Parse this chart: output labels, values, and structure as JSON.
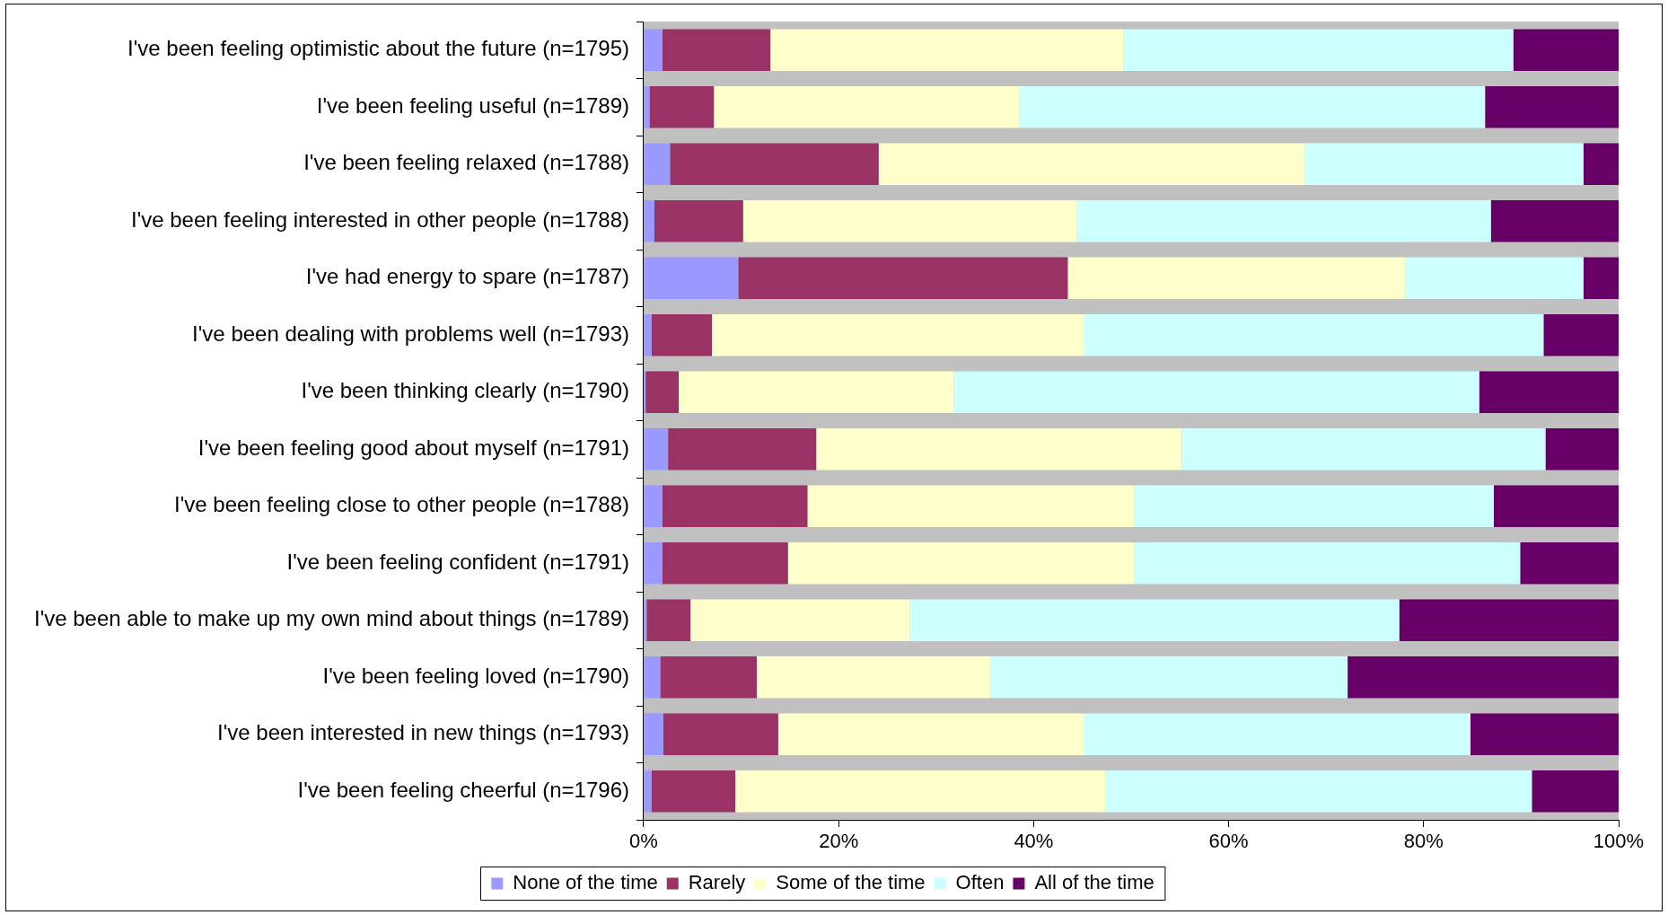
{
  "chart_data": {
    "type": "bar",
    "orientation": "horizontal",
    "stacked": true,
    "categories": [
      "I've been feeling optimistic about the future (n=1795)",
      "I've been feeling useful (n=1789)",
      "I've been feeling relaxed (n=1788)",
      "I've been feeling interested in other people (n=1788)",
      "I've had energy to spare (n=1787)",
      "I've been dealing with problems well (n=1793)",
      "I've been thinking clearly (n=1790)",
      "I've been feeling good about myself (n=1791)",
      "I've been feeling close to other people (n=1788)",
      "I've been feeling confident (n=1791)",
      "I've been able to make up my own mind about things (n=1789)",
      "I've been feeling loved (n=1790)",
      "I've been interested in new things (n=1793)",
      "I've been feeling cheerful (n=1796)"
    ],
    "series": [
      {
        "name": "None of the time",
        "color": "#9999ff",
        "values": [
          1.9,
          0.6,
          2.7,
          1.1,
          9.7,
          0.8,
          0.2,
          2.5,
          1.9,
          1.9,
          0.3,
          1.7,
          2.0,
          0.8
        ]
      },
      {
        "name": "Rarely",
        "color": "#993366",
        "values": [
          11.1,
          6.6,
          21.4,
          9.1,
          33.8,
          6.2,
          3.4,
          15.2,
          14.9,
          12.9,
          4.5,
          9.9,
          11.8,
          8.6
        ]
      },
      {
        "name": "Some of the time",
        "color": "#ffffcc",
        "values": [
          36.2,
          31.3,
          43.7,
          34.2,
          34.6,
          38.2,
          28.2,
          37.5,
          33.5,
          35.5,
          22.5,
          24.0,
          31.4,
          38.0
        ]
      },
      {
        "name": "Often",
        "color": "#ccffff",
        "values": [
          40.0,
          47.8,
          28.6,
          42.5,
          18.3,
          47.1,
          53.9,
          37.3,
          36.9,
          39.6,
          50.2,
          36.6,
          39.6,
          43.7
        ]
      },
      {
        "name": "All of the time",
        "color": "#660066",
        "values": [
          10.8,
          13.7,
          3.6,
          13.1,
          3.6,
          7.7,
          14.3,
          7.5,
          12.8,
          10.1,
          22.5,
          27.8,
          15.2,
          8.9
        ]
      }
    ],
    "xlim": [
      0,
      100
    ],
    "xticks": [
      {
        "value": 0,
        "label": "0%"
      },
      {
        "value": 20,
        "label": "20%"
      },
      {
        "value": 40,
        "label": "40%"
      },
      {
        "value": 60,
        "label": "60%"
      },
      {
        "value": 80,
        "label": "80%"
      },
      {
        "value": 100,
        "label": "100%"
      }
    ],
    "grid": false,
    "legend": "bottom"
  }
}
